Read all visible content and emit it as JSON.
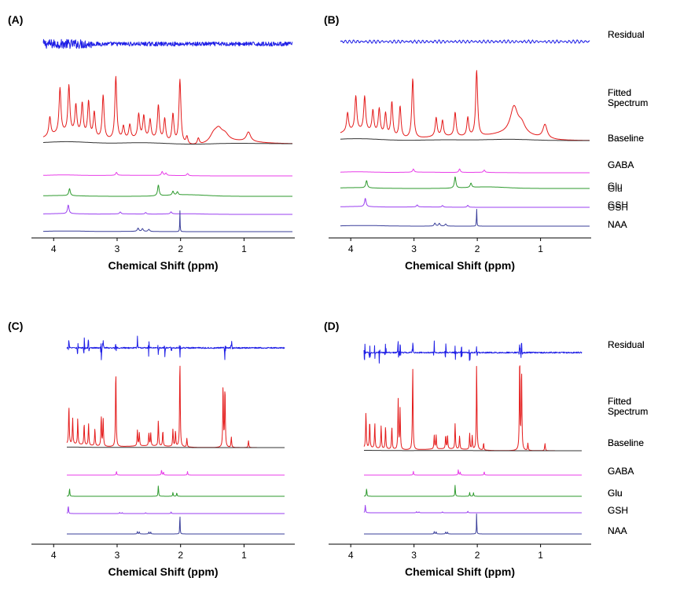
{
  "figure": {
    "axis_title": "Chemical Shift (ppm)",
    "tick_labels": [
      "4",
      "3",
      "2",
      "1"
    ],
    "colors": {
      "Residual": "#1f1fe6",
      "Fitted Spectrum": "#e41b1b",
      "Baseline": "#333333",
      "GABA": "#e83ee8",
      "Glu": "#2e9a2e",
      "GSH": "#9a3ff0",
      "NAA": "#3a3f9a"
    }
  },
  "chart_data": [
    {
      "type": "line",
      "panel": "(A)",
      "xlabel": "Chemical Shift (ppm)",
      "xlim": [
        4.35,
        0.2
      ],
      "xticks": [
        4,
        3,
        2,
        1
      ],
      "series": [
        {
          "name": "Residual",
          "label": "Residual",
          "kind": "noise",
          "amp": 1.0,
          "style": "dense"
        },
        {
          "name": "Fitted Spectrum",
          "label": "Fitted Spectrum",
          "kind": "fit",
          "sharp": false,
          "peaks": [
            [
              4.06,
              0.3
            ],
            [
              3.9,
              0.72
            ],
            [
              3.76,
              0.75
            ],
            [
              3.65,
              0.45
            ],
            [
              3.55,
              0.5
            ],
            [
              3.45,
              0.55
            ],
            [
              3.36,
              0.4
            ],
            [
              3.22,
              0.7
            ],
            [
              3.02,
              1.0
            ],
            [
              2.9,
              0.2
            ],
            [
              2.8,
              0.22
            ],
            [
              2.66,
              0.38
            ],
            [
              2.58,
              0.35
            ],
            [
              2.48,
              0.3
            ],
            [
              2.35,
              0.55
            ],
            [
              2.25,
              0.35
            ],
            [
              2.12,
              0.45
            ],
            [
              2.01,
              1.02
            ],
            [
              1.9,
              0.12
            ],
            [
              1.72,
              0.1
            ],
            [
              1.48,
              0.12
            ],
            [
              1.4,
              0.18
            ],
            [
              1.3,
              0.1
            ],
            [
              0.93,
              0.15
            ]
          ]
        },
        {
          "name": "Baseline",
          "label": "Baseline",
          "kind": "baseline",
          "bumps": [
            [
              3.8,
              0.16
            ],
            [
              2.6,
              0.08
            ],
            [
              1.8,
              -0.05
            ],
            [
              1.2,
              0.04
            ]
          ]
        },
        {
          "name": "GABA",
          "label": "GABA",
          "kind": "metab",
          "bumps": [
            [
              3.85,
              0.12
            ],
            [
              2.9,
              0.08
            ],
            [
              2.2,
              0.05
            ]
          ],
          "peaks": [
            [
              3.01,
              0.38
            ],
            [
              2.29,
              0.5
            ],
            [
              2.23,
              0.3
            ],
            [
              1.89,
              0.28
            ]
          ]
        },
        {
          "name": "Glu",
          "label": "Glu",
          "kind": "metab",
          "bumps": [
            [
              3.9,
              0.1
            ],
            [
              1.9,
              0.2
            ]
          ],
          "peaks": [
            [
              3.75,
              0.9
            ],
            [
              2.35,
              1.4
            ],
            [
              2.12,
              0.5
            ],
            [
              2.05,
              0.4
            ]
          ]
        },
        {
          "name": "GSH",
          "label": "GSH",
          "kind": "metab",
          "bumps": [
            [
              3.85,
              0.1
            ],
            [
              2.9,
              0.06
            ],
            [
              1.95,
              0.08
            ]
          ],
          "peaks": [
            [
              3.77,
              1.1
            ],
            [
              2.95,
              0.25
            ],
            [
              2.55,
              0.2
            ],
            [
              2.15,
              0.25
            ]
          ]
        },
        {
          "name": "NAA",
          "label": "NAA",
          "kind": "metab",
          "bumps": [
            [
              3.8,
              0.12
            ],
            [
              2.8,
              0.05
            ]
          ],
          "peaks": [
            [
              2.67,
              0.6
            ],
            [
              2.6,
              0.5
            ],
            [
              2.5,
              0.4
            ],
            [
              2.01,
              3.8
            ]
          ]
        }
      ]
    },
    {
      "type": "line",
      "panel": "(B)",
      "xlabel": "Chemical Shift (ppm)",
      "xlim": [
        4.35,
        0.2
      ],
      "xticks": [
        4,
        3,
        2,
        1
      ],
      "series": [
        {
          "name": "Residual",
          "label": "Residual",
          "kind": "noise",
          "amp": 0.8,
          "style": "wavy"
        },
        {
          "name": "Fitted Spectrum",
          "label": "Fitted Spectrum",
          "kind": "fit",
          "sharp": false,
          "peaks": [
            [
              4.05,
              0.3
            ],
            [
              3.92,
              0.55
            ],
            [
              3.78,
              0.55
            ],
            [
              3.65,
              0.35
            ],
            [
              3.55,
              0.4
            ],
            [
              3.45,
              0.35
            ],
            [
              3.35,
              0.55
            ],
            [
              3.22,
              0.5
            ],
            [
              3.02,
              0.95
            ],
            [
              2.65,
              0.3
            ],
            [
              2.55,
              0.25
            ],
            [
              2.35,
              0.38
            ],
            [
              2.15,
              0.3
            ],
            [
              2.01,
              1.05
            ],
            [
              1.42,
              0.42
            ],
            [
              1.3,
              0.15
            ],
            [
              0.93,
              0.22
            ]
          ]
        },
        {
          "name": "Baseline",
          "label": "Baseline",
          "kind": "baseline",
          "bumps": [
            [
              3.9,
              0.15
            ],
            [
              2.5,
              0.06
            ],
            [
              1.5,
              0.1
            ]
          ]
        },
        {
          "name": "GABA",
          "label": "GABA",
          "kind": "metab",
          "bumps": [
            [
              3.9,
              0.12
            ],
            [
              2.9,
              0.08
            ],
            [
              2.0,
              0.05
            ]
          ],
          "peaks": [
            [
              3.01,
              0.4
            ],
            [
              2.28,
              0.45
            ],
            [
              1.89,
              0.3
            ]
          ]
        },
        {
          "name": "Glu",
          "label": "Glu",
          "kind": "metab",
          "bumps": [
            [
              3.95,
              0.1
            ],
            [
              1.85,
              0.2
            ]
          ],
          "peaks": [
            [
              3.75,
              0.95
            ],
            [
              2.35,
              1.45
            ],
            [
              2.1,
              0.55
            ]
          ]
        },
        {
          "name": "GSH",
          "label": "GSH",
          "kind": "metab",
          "bumps": [
            [
              3.9,
              0.1
            ],
            [
              2.9,
              0.05
            ]
          ],
          "peaks": [
            [
              3.77,
              1.05
            ],
            [
              2.95,
              0.25
            ],
            [
              2.55,
              0.2
            ],
            [
              2.15,
              0.25
            ]
          ]
        },
        {
          "name": "NAA",
          "label": "NAA",
          "kind": "metab",
          "bumps": [
            [
              3.8,
              0.12
            ]
          ],
          "peaks": [
            [
              2.67,
              0.55
            ],
            [
              2.6,
              0.5
            ],
            [
              2.5,
              0.4
            ],
            [
              2.01,
              3.6
            ]
          ]
        }
      ]
    },
    {
      "type": "line",
      "panel": "(C)",
      "xlabel": "Chemical Shift (ppm)",
      "xlim": [
        4.35,
        0.2
      ],
      "xticks": [
        4,
        3,
        2,
        1
      ],
      "series": [
        {
          "name": "Residual",
          "label": "Residual",
          "kind": "noise",
          "amp": 1.0,
          "style": "spiky",
          "spikes": [
            3.76,
            3.62,
            3.52,
            3.45,
            3.25,
            3.22,
            3.02,
            2.68,
            2.5,
            2.35,
            2.25,
            2.15,
            2.01,
            1.3,
            1.2
          ]
        },
        {
          "name": "Fitted Spectrum",
          "label": "Fitted Spectrum",
          "kind": "fit",
          "sharp": true,
          "peaks": [
            [
              3.76,
              0.45
            ],
            [
              3.7,
              0.3
            ],
            [
              3.62,
              0.3
            ],
            [
              3.52,
              0.25
            ],
            [
              3.45,
              0.25
            ],
            [
              3.35,
              0.2
            ],
            [
              3.25,
              0.35
            ],
            [
              3.22,
              0.32
            ],
            [
              3.02,
              0.9
            ],
            [
              2.68,
              0.18
            ],
            [
              2.65,
              0.15
            ],
            [
              2.5,
              0.15
            ],
            [
              2.47,
              0.15
            ],
            [
              2.35,
              0.3
            ],
            [
              2.28,
              0.18
            ],
            [
              2.12,
              0.2
            ],
            [
              2.08,
              0.18
            ],
            [
              2.01,
              1.02
            ],
            [
              1.9,
              0.1
            ],
            [
              1.33,
              0.72
            ],
            [
              1.3,
              0.7
            ],
            [
              1.2,
              0.12
            ],
            [
              0.93,
              0.08
            ]
          ]
        },
        {
          "name": "Baseline",
          "label": "Baseline",
          "kind": "baseline",
          "bumps": [
            [
              3.8,
              0.04
            ],
            [
              2.5,
              0.02
            ]
          ]
        },
        {
          "name": "GABA",
          "label": "GABA",
          "kind": "metab",
          "sharpMetab": true,
          "peaks": [
            [
              3.01,
              0.5
            ],
            [
              2.3,
              0.7
            ],
            [
              2.27,
              0.4
            ],
            [
              1.89,
              0.45
            ]
          ]
        },
        {
          "name": "Glu",
          "label": "Glu",
          "kind": "metab",
          "sharpMetab": true,
          "peaks": [
            [
              3.75,
              1.0
            ],
            [
              2.35,
              1.4
            ],
            [
              2.12,
              0.5
            ],
            [
              2.06,
              0.45
            ]
          ]
        },
        {
          "name": "GSH",
          "label": "GSH",
          "kind": "metab",
          "sharpMetab": true,
          "peaks": [
            [
              3.77,
              1.0
            ],
            [
              2.96,
              0.15
            ],
            [
              2.92,
              0.12
            ],
            [
              2.55,
              0.12
            ],
            [
              2.15,
              0.2
            ]
          ]
        },
        {
          "name": "NAA",
          "label": "NAA",
          "kind": "metab",
          "sharpMetab": true,
          "peaks": [
            [
              2.68,
              0.6
            ],
            [
              2.65,
              0.55
            ],
            [
              2.5,
              0.55
            ],
            [
              2.47,
              0.5
            ],
            [
              2.01,
              5.5
            ]
          ]
        }
      ]
    },
    {
      "type": "line",
      "panel": "(D)",
      "xlabel": "Chemical Shift (ppm)",
      "xlim": [
        4.35,
        0.2
      ],
      "xticks": [
        4,
        3,
        2,
        1
      ],
      "series": [
        {
          "name": "Residual",
          "label": "Residual",
          "kind": "noise",
          "amp": 1.0,
          "style": "spiky",
          "spikes": [
            3.78,
            3.7,
            3.62,
            3.55,
            3.45,
            3.25,
            3.22,
            3.02,
            2.68,
            2.5,
            2.35,
            2.25,
            2.12,
            2.01,
            1.33,
            1.3
          ]
        },
        {
          "name": "Fitted Spectrum",
          "label": "Fitted Spectrum",
          "kind": "fit",
          "sharp": true,
          "peaks": [
            [
              3.76,
              0.4
            ],
            [
              3.7,
              0.3
            ],
            [
              3.62,
              0.28
            ],
            [
              3.52,
              0.25
            ],
            [
              3.45,
              0.25
            ],
            [
              3.35,
              0.25
            ],
            [
              3.25,
              0.55
            ],
            [
              3.22,
              0.45
            ],
            [
              3.02,
              0.92
            ],
            [
              2.68,
              0.15
            ],
            [
              2.65,
              0.15
            ],
            [
              2.5,
              0.15
            ],
            [
              2.47,
              0.15
            ],
            [
              2.35,
              0.28
            ],
            [
              2.28,
              0.15
            ],
            [
              2.12,
              0.18
            ],
            [
              2.08,
              0.15
            ],
            [
              2.01,
              0.95
            ],
            [
              1.9,
              0.08
            ],
            [
              1.33,
              1.05
            ],
            [
              1.3,
              0.9
            ],
            [
              1.2,
              0.08
            ],
            [
              0.93,
              0.08
            ]
          ]
        },
        {
          "name": "Baseline",
          "label": "Baseline",
          "kind": "baseline",
          "bumps": [
            [
              3.8,
              0.03
            ],
            [
              2.5,
              0.02
            ]
          ]
        },
        {
          "name": "GABA",
          "label": "GABA",
          "kind": "metab",
          "sharpMetab": true,
          "peaks": [
            [
              3.01,
              0.5
            ],
            [
              2.3,
              0.7
            ],
            [
              2.27,
              0.4
            ],
            [
              1.89,
              0.45
            ]
          ]
        },
        {
          "name": "Glu",
          "label": "Glu",
          "kind": "metab",
          "sharpMetab": true,
          "peaks": [
            [
              3.75,
              1.0
            ],
            [
              2.35,
              1.4
            ],
            [
              2.12,
              0.5
            ],
            [
              2.06,
              0.45
            ]
          ]
        },
        {
          "name": "GSH",
          "label": "GSH",
          "kind": "metab",
          "sharpMetab": true,
          "peaks": [
            [
              3.77,
              1.0
            ],
            [
              2.96,
              0.15
            ],
            [
              2.92,
              0.12
            ],
            [
              2.55,
              0.12
            ],
            [
              2.15,
              0.2
            ]
          ]
        },
        {
          "name": "NAA",
          "label": "NAA",
          "kind": "metab",
          "sharpMetab": true,
          "peaks": [
            [
              2.68,
              0.6
            ],
            [
              2.65,
              0.55
            ],
            [
              2.5,
              0.55
            ],
            [
              2.47,
              0.5
            ],
            [
              2.01,
              5.5
            ]
          ]
        }
      ]
    }
  ]
}
